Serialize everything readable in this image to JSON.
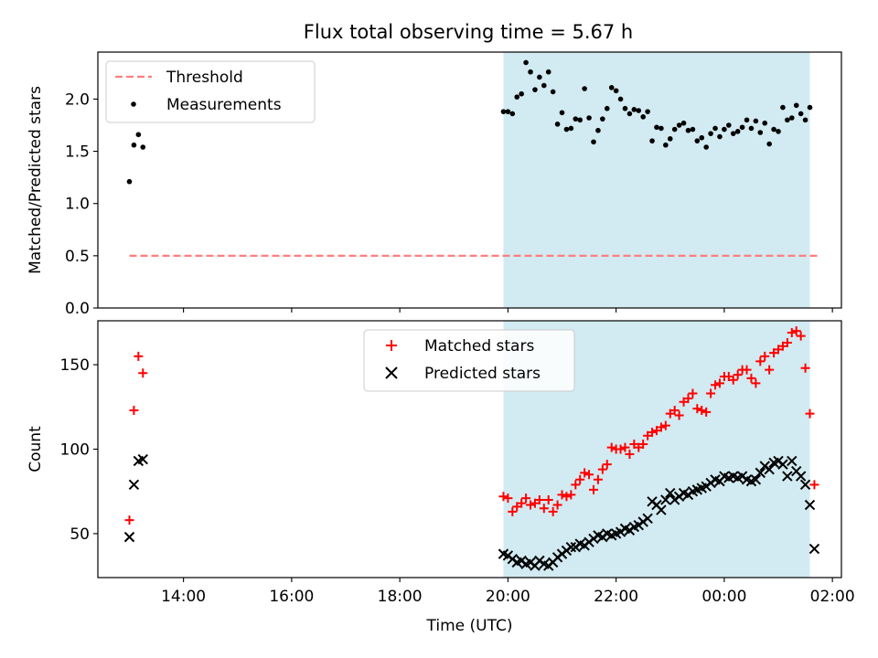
{
  "title": "Flux total observing time = 5.67 h",
  "chart_data": [
    {
      "type": "scatter",
      "panel": "top",
      "ylabel": "Matched/Predicted stars",
      "xlabel": "",
      "ylim": [
        0,
        2.45
      ],
      "yticks": [
        0.0,
        0.5,
        1.0,
        1.5,
        2.0
      ],
      "ytick_labels": [
        "0.0",
        "0.5",
        "1.0",
        "1.5",
        "2.0"
      ],
      "legend_position": "upper left",
      "shaded_interval": [
        "19:55",
        "01:35"
      ],
      "series": [
        {
          "name": "Threshold",
          "kind": "dashed-line",
          "color": "#ff7f7f",
          "x": [
            "13:00",
            "01:45"
          ],
          "y": [
            0.5,
            0.5
          ]
        },
        {
          "name": "Measurements",
          "kind": "dot",
          "color": "#000000",
          "points": [
            [
              "13:00",
              1.21
            ],
            [
              "13:05",
              1.56
            ],
            [
              "13:10",
              1.66
            ],
            [
              "13:15",
              1.54
            ],
            [
              "19:55",
              1.88
            ],
            [
              "20:00",
              1.88
            ],
            [
              "20:05",
              1.86
            ],
            [
              "20:10",
              2.02
            ],
            [
              "20:15",
              2.05
            ],
            [
              "20:20",
              2.35
            ],
            [
              "20:25",
              2.26
            ],
            [
              "20:30",
              2.09
            ],
            [
              "20:35",
              2.21
            ],
            [
              "20:40",
              2.13
            ],
            [
              "20:45",
              2.26
            ],
            [
              "20:50",
              2.07
            ],
            [
              "20:55",
              1.76
            ],
            [
              "21:00",
              1.87
            ],
            [
              "21:05",
              1.71
            ],
            [
              "21:10",
              1.72
            ],
            [
              "21:15",
              1.81
            ],
            [
              "21:20",
              1.8
            ],
            [
              "21:25",
              2.1
            ],
            [
              "21:30",
              1.82
            ],
            [
              "21:35",
              1.59
            ],
            [
              "21:40",
              1.7
            ],
            [
              "21:45",
              1.81
            ],
            [
              "21:50",
              1.91
            ],
            [
              "21:55",
              2.11
            ],
            [
              "22:00",
              2.08
            ],
            [
              "22:05",
              2.0
            ],
            [
              "22:10",
              1.91
            ],
            [
              "22:15",
              1.86
            ],
            [
              "22:20",
              1.9
            ],
            [
              "22:25",
              1.89
            ],
            [
              "22:30",
              1.83
            ],
            [
              "22:35",
              1.88
            ],
            [
              "22:40",
              1.6
            ],
            [
              "22:45",
              1.73
            ],
            [
              "22:50",
              1.72
            ],
            [
              "22:55",
              1.56
            ],
            [
              "23:00",
              1.62
            ],
            [
              "23:05",
              1.71
            ],
            [
              "23:10",
              1.75
            ],
            [
              "23:15",
              1.77
            ],
            [
              "23:20",
              1.7
            ],
            [
              "23:25",
              1.71
            ],
            [
              "23:30",
              1.6
            ],
            [
              "23:35",
              1.63
            ],
            [
              "23:40",
              1.54
            ],
            [
              "23:45",
              1.67
            ],
            [
              "23:50",
              1.72
            ],
            [
              "23:55",
              1.64
            ],
            [
              "00:00",
              1.71
            ],
            [
              "00:05",
              1.75
            ],
            [
              "00:10",
              1.67
            ],
            [
              "00:15",
              1.69
            ],
            [
              "00:20",
              1.73
            ],
            [
              "00:25",
              1.8
            ],
            [
              "00:30",
              1.72
            ],
            [
              "00:35",
              1.79
            ],
            [
              "00:40",
              1.68
            ],
            [
              "00:45",
              1.77
            ],
            [
              "00:50",
              1.57
            ],
            [
              "00:55",
              1.71
            ],
            [
              "01:00",
              1.69
            ],
            [
              "01:05",
              1.92
            ],
            [
              "01:10",
              1.8
            ],
            [
              "01:15",
              1.82
            ],
            [
              "01:20",
              1.94
            ],
            [
              "01:25",
              1.86
            ],
            [
              "01:30",
              1.8
            ],
            [
              "01:35",
              1.92
            ]
          ]
        }
      ]
    },
    {
      "type": "scatter",
      "panel": "bottom",
      "ylabel": "Count",
      "xlabel": "Time (UTC)",
      "ylim": [
        24,
        176
      ],
      "yticks": [
        50,
        100,
        150
      ],
      "ytick_labels": [
        "50",
        "100",
        "150"
      ],
      "x_range": [
        "12:25",
        "02:10"
      ],
      "xticks": [
        "14:00",
        "16:00",
        "18:00",
        "20:00",
        "22:00",
        "00:00",
        "02:00"
      ],
      "legend_position": "upper center",
      "shaded_interval": [
        "19:55",
        "01:35"
      ],
      "series": [
        {
          "name": "Matched stars",
          "kind": "plus",
          "color": "#ff0000",
          "points": [
            [
              "13:00",
              58
            ],
            [
              "13:05",
              123
            ],
            [
              "13:10",
              155
            ],
            [
              "13:15",
              145
            ],
            [
              "19:55",
              72
            ],
            [
              "20:00",
              71
            ],
            [
              "20:05",
              63
            ],
            [
              "20:10",
              66
            ],
            [
              "20:15",
              68
            ],
            [
              "20:20",
              71
            ],
            [
              "20:25",
              67
            ],
            [
              "20:30",
              68
            ],
            [
              "20:35",
              70
            ],
            [
              "20:40",
              65
            ],
            [
              "20:45",
              70
            ],
            [
              "20:50",
              63
            ],
            [
              "20:55",
              67
            ],
            [
              "21:00",
              73
            ],
            [
              "21:05",
              72
            ],
            [
              "21:10",
              73
            ],
            [
              "21:15",
              79
            ],
            [
              "21:20",
              82
            ],
            [
              "21:25",
              86
            ],
            [
              "21:30",
              85
            ],
            [
              "21:35",
              76
            ],
            [
              "21:40",
              82
            ],
            [
              "21:45",
              88
            ],
            [
              "21:50",
              91
            ],
            [
              "21:55",
              101
            ],
            [
              "22:00",
              100
            ],
            [
              "22:05",
              100
            ],
            [
              "22:10",
              101
            ],
            [
              "22:15",
              97
            ],
            [
              "22:20",
              103
            ],
            [
              "22:25",
              101
            ],
            [
              "22:30",
              103
            ],
            [
              "22:35",
              108
            ],
            [
              "22:40",
              110
            ],
            [
              "22:45",
              111
            ],
            [
              "22:50",
              113
            ],
            [
              "22:55",
              114
            ],
            [
              "23:00",
              121
            ],
            [
              "23:05",
              123
            ],
            [
              "23:10",
              120
            ],
            [
              "23:15",
              128
            ],
            [
              "23:20",
              130
            ],
            [
              "23:25",
              133
            ],
            [
              "23:30",
              124
            ],
            [
              "23:35",
              123
            ],
            [
              "23:40",
              122
            ],
            [
              "23:45",
              133
            ],
            [
              "23:50",
              138
            ],
            [
              "23:55",
              139
            ],
            [
              "00:00",
              143
            ],
            [
              "00:05",
              143
            ],
            [
              "00:10",
              141
            ],
            [
              "00:15",
              144
            ],
            [
              "00:20",
              147
            ],
            [
              "00:25",
              147
            ],
            [
              "00:30",
              142
            ],
            [
              "00:35",
              139
            ],
            [
              "00:40",
              152
            ],
            [
              "00:45",
              155
            ],
            [
              "00:50",
              147
            ],
            [
              "00:55",
              157
            ],
            [
              "01:00",
              159
            ],
            [
              "01:05",
              161
            ],
            [
              "01:10",
              163
            ],
            [
              "01:15",
              169
            ],
            [
              "01:20",
              170
            ],
            [
              "01:25",
              167
            ],
            [
              "01:30",
              148
            ],
            [
              "01:35",
              121
            ],
            [
              "01:40",
              79
            ]
          ]
        },
        {
          "name": "Predicted stars",
          "kind": "cross",
          "color": "#000000",
          "points": [
            [
              "13:00",
              48
            ],
            [
              "13:05",
              79
            ],
            [
              "13:10",
              93
            ],
            [
              "13:15",
              94
            ],
            [
              "19:55",
              38
            ],
            [
              "20:00",
              37
            ],
            [
              "20:05",
              35
            ],
            [
              "20:10",
              33
            ],
            [
              "20:15",
              34
            ],
            [
              "20:20",
              32
            ],
            [
              "20:25",
              33
            ],
            [
              "20:30",
              31
            ],
            [
              "20:35",
              34
            ],
            [
              "20:40",
              32
            ],
            [
              "20:45",
              31
            ],
            [
              "20:50",
              33
            ],
            [
              "20:55",
              36
            ],
            [
              "21:00",
              38
            ],
            [
              "21:05",
              40
            ],
            [
              "21:10",
              42
            ],
            [
              "21:15",
              42
            ],
            [
              "21:20",
              44
            ],
            [
              "21:25",
              43
            ],
            [
              "21:30",
              45
            ],
            [
              "21:35",
              47
            ],
            [
              "21:40",
              49
            ],
            [
              "21:45",
              48
            ],
            [
              "21:50",
              50
            ],
            [
              "21:55",
              49
            ],
            [
              "22:00",
              50
            ],
            [
              "22:05",
              51
            ],
            [
              "22:10",
              53
            ],
            [
              "22:15",
              52
            ],
            [
              "22:20",
              54
            ],
            [
              "22:25",
              55
            ],
            [
              "22:30",
              57
            ],
            [
              "22:35",
              59
            ],
            [
              "22:40",
              69
            ],
            [
              "22:45",
              67
            ],
            [
              "22:50",
              64
            ],
            [
              "22:55",
              70
            ],
            [
              "23:00",
              74
            ],
            [
              "23:05",
              70
            ],
            [
              "23:10",
              72
            ],
            [
              "23:15",
              74
            ],
            [
              "23:20",
              73
            ],
            [
              "23:25",
              75
            ],
            [
              "23:30",
              76
            ],
            [
              "23:35",
              77
            ],
            [
              "23:40",
              78
            ],
            [
              "23:45",
              80
            ],
            [
              "23:50",
              82
            ],
            [
              "23:55",
              81
            ],
            [
              "00:00",
              84
            ],
            [
              "00:05",
              83
            ],
            [
              "00:10",
              84
            ],
            [
              "00:15",
              83
            ],
            [
              "00:20",
              84
            ],
            [
              "00:25",
              82
            ],
            [
              "00:30",
              81
            ],
            [
              "00:35",
              82
            ],
            [
              "00:40",
              86
            ],
            [
              "00:45",
              90
            ],
            [
              "00:50",
              88
            ],
            [
              "00:55",
              92
            ],
            [
              "01:00",
              93
            ],
            [
              "01:05",
              91
            ],
            [
              "01:10",
              84
            ],
            [
              "01:15",
              93
            ],
            [
              "01:20",
              87
            ],
            [
              "01:25",
              84
            ],
            [
              "01:30",
              79
            ],
            [
              "01:35",
              67
            ],
            [
              "01:40",
              41
            ]
          ]
        }
      ]
    }
  ],
  "colors": {
    "shade": "#add8e6",
    "threshold": "#ff7f7f",
    "matched": "#ff0000",
    "predicted": "#000000"
  }
}
